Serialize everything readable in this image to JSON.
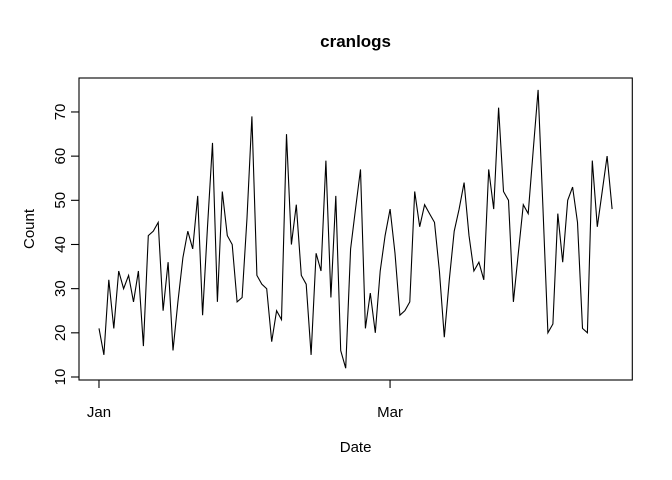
{
  "chart_data": {
    "type": "line",
    "title": "cranlogs",
    "xlabel": "Date",
    "ylabel": "Count",
    "line_color": "#000000",
    "background_color": "#ffffff",
    "grid": false,
    "legend": false,
    "x_unit": "day-offset from Jan 1",
    "x_ticks": [
      {
        "day": 0,
        "label": "Jan"
      },
      {
        "day": 59,
        "label": "Mar"
      }
    ],
    "y_ticks": [
      10,
      20,
      30,
      40,
      50,
      60,
      70
    ],
    "xlim": [
      -4.05,
      108.1
    ],
    "ylim": [
      9.32,
      77.69
    ],
    "y_data_range": [
      12,
      75
    ],
    "series": [
      {
        "name": "cranlogs",
        "x_days": "0..104",
        "values": [
          21,
          15,
          32,
          21,
          34,
          30,
          33,
          27,
          34,
          17,
          42,
          43,
          45,
          25,
          36,
          16,
          27,
          37,
          43,
          39,
          51,
          24,
          44,
          63,
          27,
          52,
          42,
          40,
          27,
          28,
          46,
          69,
          33,
          31,
          30,
          18,
          25,
          23,
          65,
          40,
          49,
          33,
          31,
          15,
          38,
          34,
          59,
          28,
          51,
          16,
          12,
          39,
          48,
          57,
          21,
          29,
          20,
          34,
          42,
          48,
          38,
          24,
          25,
          27,
          52,
          44,
          49,
          47,
          45,
          34,
          19,
          32,
          43,
          48,
          54,
          42,
          34,
          36,
          32,
          57,
          48,
          71,
          52,
          50,
          27,
          38,
          49,
          47,
          61,
          75,
          48,
          20,
          22,
          47,
          36,
          50,
          53,
          45,
          21,
          20,
          59,
          44,
          52,
          60,
          48
        ]
      }
    ]
  }
}
